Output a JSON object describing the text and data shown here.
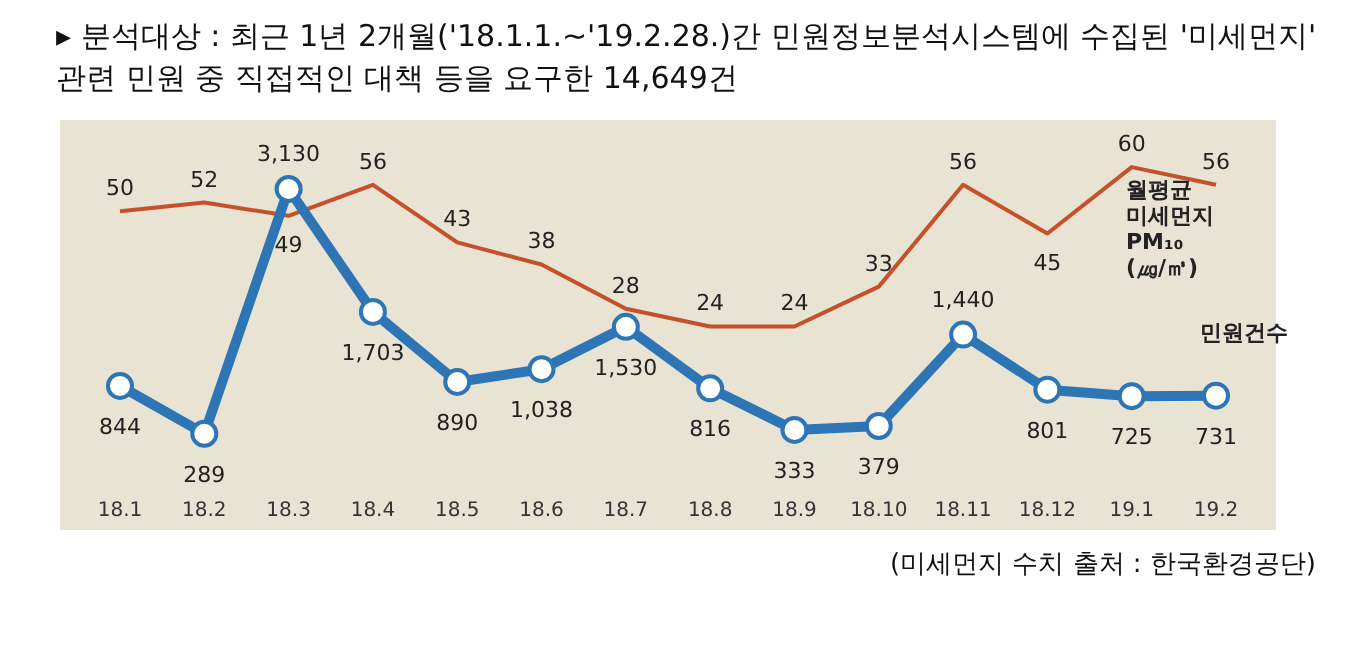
{
  "chart_data": {
    "type": "line",
    "title": "▸ 분석대상 : 최근 1년 2개월('18.1.1.~'19.2.28.)간 민원정보분석시스템에 수집된 '미세먼지' 관련 민원 중 직접적인 대책 등을 요구한 14,649건",
    "categories": [
      "18.1",
      "18.2",
      "18.3",
      "18.4",
      "18.5",
      "18.6",
      "18.7",
      "18.8",
      "18.9",
      "18.10",
      "18.11",
      "18.12",
      "19.1",
      "19.2"
    ],
    "series": [
      {
        "name": "월평균 미세먼지 PM₁₀ (㎍/㎥)",
        "color": "#c5512a",
        "axis": "y2",
        "marker": "none",
        "values": [
          50,
          52,
          49,
          56,
          43,
          38,
          28,
          24,
          24,
          33,
          56,
          45,
          60,
          56
        ],
        "value_labels": [
          "50",
          "52",
          "49",
          "56",
          "43",
          "38",
          "28",
          "24",
          "24",
          "33",
          "56",
          "45",
          "60",
          "56"
        ]
      },
      {
        "name": "민원건수",
        "color": "#2e75b6",
        "axis": "y",
        "marker": "circle",
        "values": [
          844,
          289,
          3130,
          1703,
          890,
          1038,
          1530,
          816,
          333,
          379,
          1440,
          801,
          725,
          731
        ],
        "value_labels": [
          "844",
          "289",
          "3,130",
          "1,703",
          "890",
          "1,038",
          "1,530",
          "816",
          "333",
          "379",
          "1,440",
          "801",
          "725",
          "731"
        ]
      }
    ],
    "annotations": [
      "(미세먼지 수치 출처 : 한국환경공단)"
    ],
    "grid": false,
    "legend": false,
    "tick_labels": "x",
    "line_style": "solid"
  }
}
